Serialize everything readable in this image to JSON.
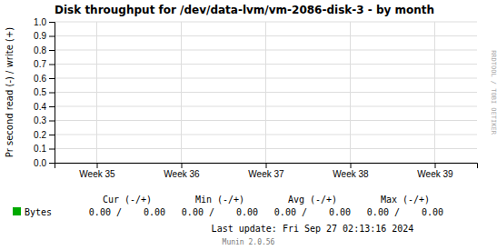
{
  "chart_data": {
    "type": "line",
    "title": "Disk throughput for /dev/data-lvm/vm-2086-disk-3 - by month",
    "y_label": "Pr second read (-) / write (+)",
    "categories": [
      "Week 35",
      "Week 36",
      "Week 37",
      "Week 38",
      "Week 39"
    ],
    "series": [
      {
        "name": "Bytes",
        "color": "#00aa00",
        "values": [
          null,
          null,
          null,
          null,
          null
        ]
      }
    ],
    "ylim": [
      0.0,
      1.0
    ],
    "yticks": [
      {
        "value": 0.0,
        "label": "0.0"
      },
      0.1,
      0.2,
      0.3,
      0.4,
      0.5,
      0.6,
      0.7,
      0.8,
      0.9,
      {
        "value": 1.0,
        "label": "1.0"
      }
    ],
    "grid": true,
    "stat_labels": [
      "Cur (-/+)",
      "Min (-/+)",
      "Avg (-/+)",
      "Max (-/+)"
    ],
    "stat_values": [
      "0.00 /    0.00",
      "0.00 /    0.00",
      "0.00 /    0.00",
      "0.00 /    0.00"
    ],
    "last_update": "Last update: Fri Sep 27 02:13:16 2024",
    "footer": "Munin 2.0.56",
    "watermark": "RRDTOOL / TOBI OETIKER"
  }
}
